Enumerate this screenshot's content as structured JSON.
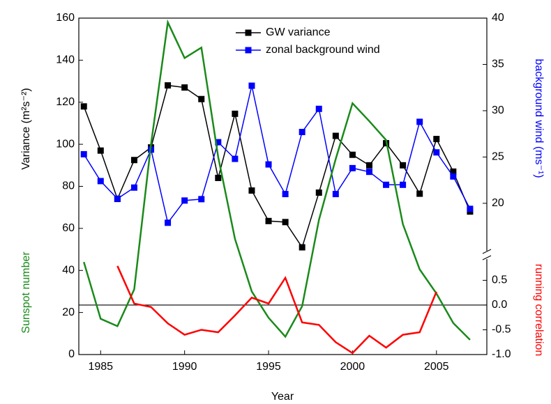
{
  "chart_data": {
    "type": "line",
    "x_label": "Year",
    "y_label": "Variance (m²s⁻²)",
    "y_label_2": "Sunspot number",
    "y2_label": "background wind (ms⁻¹)",
    "y3_label": "running correlation",
    "x": [
      1984,
      1985,
      1986,
      1987,
      1988,
      1989,
      1990,
      1991,
      1992,
      1993,
      1994,
      1995,
      1996,
      1997,
      1998,
      1999,
      2000,
      2001,
      2002,
      2003,
      2004,
      2005,
      2006,
      2007
    ],
    "xlim": [
      1983.7,
      2008
    ],
    "xticks": [
      1985,
      1990,
      1995,
      2000,
      2005
    ],
    "ylim": [
      0,
      160
    ],
    "yticks": [
      0,
      20,
      40,
      60,
      80,
      100,
      120,
      140,
      160
    ],
    "y2lim": [
      14.5,
      40
    ],
    "y2ticks": [
      20,
      25,
      30,
      35,
      40
    ],
    "y3lim": [
      -1,
      0.9
    ],
    "y3ticks": [
      {
        "value": -1,
        "label": "-1.0"
      },
      -0.5,
      {
        "value": 0,
        "label": "0.0"
      },
      0.5
    ],
    "zero_line": true,
    "grid": false,
    "series": [
      {
        "name": "GW variance",
        "color": "#000000",
        "axis": "y",
        "marker": "square",
        "legend": true,
        "values": [
          118,
          97,
          74,
          92.5,
          98.5,
          128,
          127,
          121.5,
          84,
          114.5,
          78,
          63.5,
          63,
          51,
          77,
          104,
          95,
          90,
          100.5,
          90,
          76.5,
          102.5,
          87,
          68
        ]
      },
      {
        "name": "zonal background wind",
        "color": "#0000ff",
        "axis": "y2",
        "marker": "square",
        "legend": true,
        "values": [
          25.3,
          22.4,
          20.5,
          21.7,
          25.8,
          17.9,
          20.3,
          20.45,
          26.6,
          24.8,
          32.7,
          24.2,
          21.0,
          27.7,
          30.2,
          21.0,
          23.8,
          23.4,
          22.0,
          22.0,
          28.8,
          25.5,
          22.9,
          19.4
        ]
      },
      {
        "name": "Sunspot number",
        "color": "#1a8a1a",
        "axis": "y",
        "marker": "none",
        "legend": false,
        "values": [
          44,
          17,
          13.5,
          31,
          100,
          158,
          141,
          146,
          94,
          55,
          30,
          17.5,
          8.5,
          23,
          64,
          93,
          119.5,
          111,
          102,
          62,
          40.5,
          29,
          15,
          7
        ]
      },
      {
        "name": "running correlation",
        "color": "#ff0000",
        "axis": "y3",
        "marker": "none",
        "legend": false,
        "values": [
          null,
          null,
          0.79,
          0.03,
          -0.04,
          -0.37,
          -0.6,
          -0.5,
          -0.55,
          -0.21,
          0.15,
          0.03,
          0.55,
          -0.35,
          -0.4,
          -0.75,
          -0.97,
          -0.62,
          -0.86,
          -0.6,
          -0.55,
          0.27,
          null,
          null
        ]
      }
    ]
  }
}
